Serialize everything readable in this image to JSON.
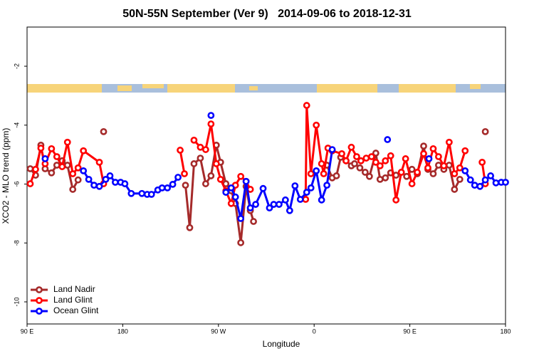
{
  "chart_data": {
    "type": "line",
    "title": "50N-55N September (Ver 9)   2014-09-06 to 2018-12-31",
    "x_label": "Longitude",
    "y_label": "XCO2 - MLO trend (ppm)",
    "xlim": [
      90,
      540
    ],
    "xticks": [
      {
        "value": 90,
        "label": "90 E"
      },
      180,
      {
        "value": 270,
        "label": "90 W"
      },
      {
        "value": 360,
        "label": "0"
      },
      {
        "value": 450,
        "label": "90 E"
      },
      {
        "value": 540,
        "label": "180"
      }
    ],
    "ylim": [
      -10.75,
      -0.67
    ],
    "yticks": [
      -2,
      -4,
      -6,
      -8,
      -10
    ],
    "legend": "bottom-left",
    "series": [
      {
        "name": "Land Nadir",
        "color": "#a52a2a",
        "x": [
          93,
          98,
          103,
          107,
          113,
          118,
          123,
          128,
          133,
          138,
          null,
          162,
          null,
          239,
          243,
          247,
          253,
          258,
          263,
          268,
          272,
          277,
          282,
          286,
          291,
          296,
          300,
          303,
          null,
          372,
          377,
          381,
          385,
          390,
          395,
          398,
          403,
          408,
          412,
          418,
          422,
          427,
          432,
          437,
          442,
          447,
          452,
          457,
          463,
          467,
          472,
          477,
          482,
          487,
          492,
          497,
          null,
          521
        ],
        "values": [
          -5.48,
          -5.7,
          -4.68,
          -5.48,
          -5.62,
          -5.36,
          -5.21,
          -5.36,
          -6.18,
          -5.86,
          null,
          -4.22,
          null,
          -6.04,
          -7.48,
          -5.31,
          -5.12,
          -5.99,
          -5.72,
          -4.68,
          -5.26,
          -5.99,
          -6.23,
          -6.66,
          -7.99,
          -6.08,
          -6.9,
          -7.27,
          null,
          -5.36,
          -5.79,
          -5.72,
          -5.09,
          -5.21,
          -5.38,
          -5.31,
          -5.45,
          -5.6,
          -5.74,
          -4.95,
          -5.84,
          -5.79,
          -5.62,
          -5.7,
          -5.6,
          -5.74,
          -5.5,
          -5.65,
          -4.71,
          -5.5,
          -5.65,
          -5.36,
          -5.5,
          -5.36,
          -6.18,
          -5.84,
          null,
          -4.22
        ]
      },
      {
        "name": "Land Glint",
        "color": "#ff0000",
        "x": [
          93,
          98,
          103,
          107,
          113,
          118,
          123,
          128,
          133,
          138,
          143,
          158,
          162,
          null,
          234,
          238,
          null,
          247,
          253,
          258,
          263,
          268,
          272,
          277,
          282,
          286,
          291,
          296,
          300,
          null,
          352,
          353,
          357,
          362,
          367,
          369,
          373,
          377,
          386,
          390,
          395,
          400,
          404,
          409,
          414,
          418,
          422,
          427,
          432,
          437,
          442,
          446,
          452,
          457,
          463,
          467,
          472,
          477,
          482,
          487,
          492,
          497,
          502,
          null,
          518,
          521
        ],
        "values": [
          -5.99,
          -5.5,
          -4.78,
          -5.31,
          -4.8,
          -5.07,
          -5.41,
          -4.58,
          -5.65,
          -5.45,
          -4.87,
          -5.26,
          -5.99,
          null,
          -4.85,
          -5.65,
          null,
          -4.51,
          -4.75,
          -4.83,
          -3.96,
          -5.31,
          -5.84,
          -6.23,
          -6.66,
          -6.04,
          -5.74,
          -5.91,
          -6.18,
          null,
          -6.52,
          -3.33,
          -5.65,
          -4.0,
          -5.31,
          -5.65,
          -4.78,
          -4.87,
          -4.97,
          -5.21,
          -4.75,
          -5.07,
          -5.21,
          -5.12,
          -5.07,
          -5.26,
          -5.38,
          -5.21,
          -5.04,
          -6.54,
          -5.6,
          -5.14,
          -5.99,
          -5.6,
          -4.97,
          -5.45,
          -4.8,
          -5.07,
          -5.38,
          -4.58,
          -5.65,
          -5.45,
          -4.87,
          null,
          -5.26,
          -5.99
        ]
      },
      {
        "name": "Ocean Glint",
        "color": "#0000ff",
        "x": [
          107,
          null,
          143,
          148,
          153,
          158,
          164,
          168,
          173,
          178,
          182,
          188,
          198,
          203,
          207,
          213,
          217,
          222,
          227,
          232,
          null,
          263,
          null,
          277,
          282,
          286,
          291,
          296,
          300,
          305,
          312,
          318,
          322,
          327,
          333,
          337,
          342,
          347,
          353,
          357,
          362,
          367,
          372,
          377,
          null,
          429,
          null,
          468,
          null,
          502,
          507,
          511,
          516,
          521,
          526,
          531,
          536,
          540
        ],
        "values": [
          -5.14,
          null,
          -5.55,
          -5.84,
          -6.04,
          -6.08,
          -5.84,
          -5.72,
          -5.94,
          -5.94,
          -5.99,
          -6.32,
          -6.32,
          -6.35,
          -6.35,
          -6.2,
          -6.13,
          -6.13,
          -6.01,
          -5.77,
          null,
          -3.67,
          null,
          -6.28,
          -6.13,
          -6.44,
          -7.17,
          -5.91,
          -6.81,
          -6.69,
          -6.15,
          -6.81,
          -6.69,
          -6.69,
          -6.54,
          -6.9,
          -6.06,
          -6.52,
          -6.28,
          -6.13,
          -5.55,
          -6.54,
          -6.04,
          -4.83,
          null,
          -4.49,
          null,
          -5.14,
          null,
          -5.55,
          -5.86,
          -6.04,
          -6.08,
          -5.86,
          -5.72,
          -5.96,
          -5.94,
          -5.94
        ]
      }
    ]
  }
}
